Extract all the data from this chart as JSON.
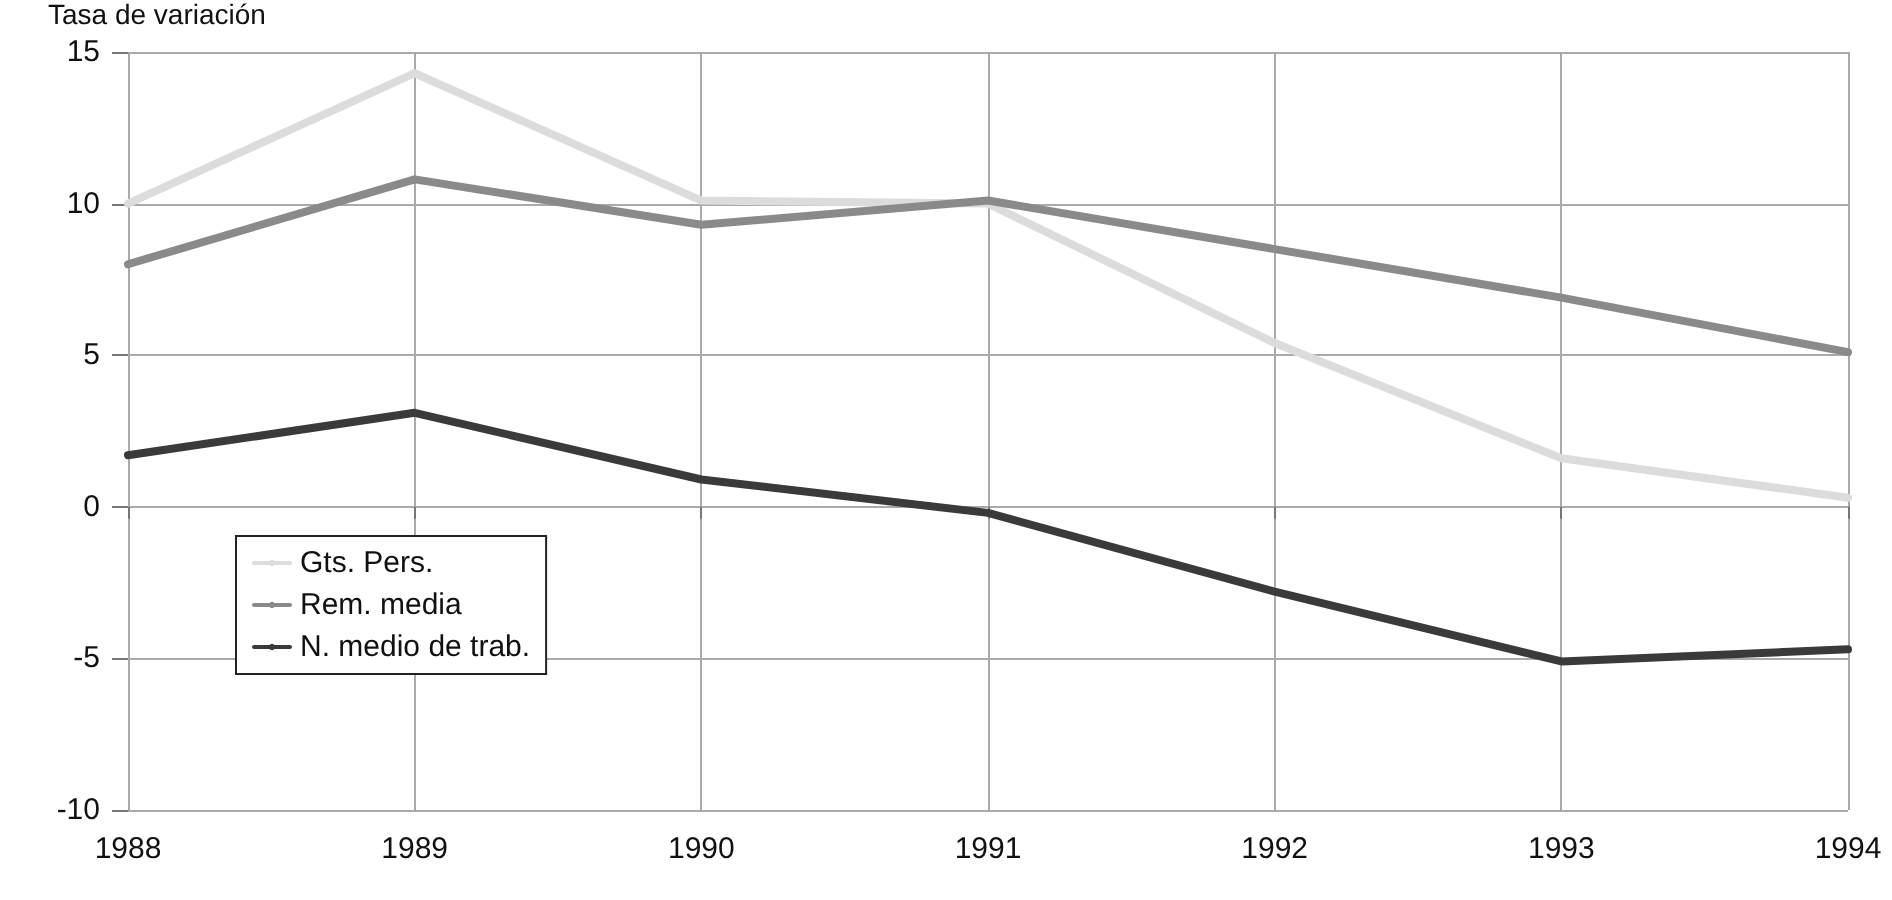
{
  "chart_data": {
    "type": "line",
    "ylabel": "Tasa de variación",
    "categories": [
      "1988",
      "1989",
      "1990",
      "1991",
      "1992",
      "1993",
      "1994"
    ],
    "series": [
      {
        "name": "Gts. Pers.",
        "color": "#dcdcdc",
        "values": [
          10,
          14.3,
          10.1,
          10,
          5.4,
          1.6,
          0.3
        ]
      },
      {
        "name": "Rem. media",
        "color": "#8a8a8a",
        "values": [
          8,
          10.8,
          9.3,
          10.1,
          8.5,
          6.9,
          5.1
        ]
      },
      {
        "name": "N. medio de trab.",
        "color": "#3a3a3a",
        "values": [
          1.7,
          3.1,
          0.9,
          -0.2,
          -2.8,
          -5.1,
          -4.7
        ]
      }
    ],
    "ylim": [
      -10,
      15
    ],
    "yticks": [
      -10,
      -5,
      0,
      5,
      10,
      15
    ],
    "grid": true,
    "legend": "bottom left",
    "marker": "none",
    "line_style": "solid"
  }
}
